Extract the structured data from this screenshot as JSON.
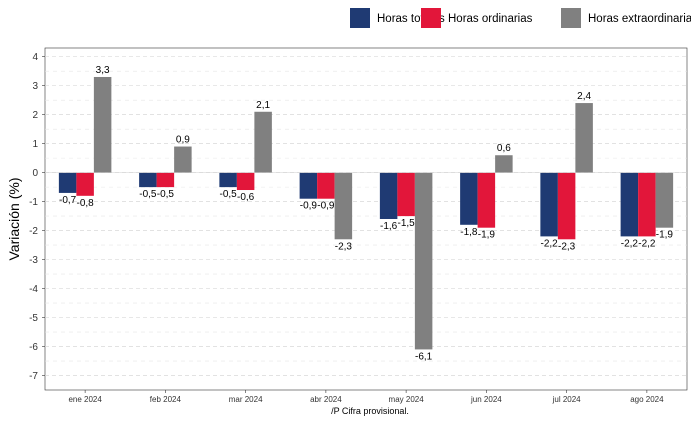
{
  "chart_data": {
    "type": "bar",
    "categories": [
      "ene 2024",
      "feb 2024",
      "mar 2024",
      "abr 2024",
      "may 2024",
      "jun 2024",
      "jul 2024",
      "ago 2024"
    ],
    "series": [
      {
        "name": "Horas totales",
        "color": "#1f3a73",
        "values": [
          -0.7,
          -0.5,
          -0.5,
          -0.9,
          -1.6,
          -1.8,
          -2.2,
          -2.2
        ],
        "labels": [
          "-0,7",
          "-0,5",
          "-0,5",
          "-0,9",
          "-1,6",
          "-1,8",
          "-2,2",
          "-2,2"
        ]
      },
      {
        "name": "Horas ordinarias",
        "color": "#e2163a",
        "values": [
          -0.8,
          -0.5,
          -0.6,
          -0.9,
          -1.5,
          -1.9,
          -2.3,
          -2.2
        ],
        "labels": [
          "-0,8",
          "-0,5",
          "-0,6",
          "-0,9",
          "-1,5",
          "-1,9",
          "-2,3",
          "-2,2"
        ]
      },
      {
        "name": "Horas extraordinarias",
        "color": "#808080",
        "values": [
          3.3,
          0.9,
          2.1,
          -2.3,
          -6.1,
          0.6,
          2.4,
          -1.9
        ],
        "labels": [
          "3,3",
          "0,9",
          "2,1",
          "-2,3",
          "-6,1",
          "0,6",
          "2,4",
          "-1,9"
        ]
      }
    ],
    "ylabel": "Variación (%)",
    "xlabel": "",
    "ylim": [
      -7.5,
      4.3
    ],
    "yticks": [
      -7,
      -6,
      -5,
      -4,
      -3,
      -2,
      -1,
      0,
      1,
      2,
      3,
      4
    ],
    "ytick_labels": [
      "-7",
      "-6",
      "-5",
      "-4",
      "-3",
      "-2",
      "-1",
      "0",
      "1",
      "2",
      "3",
      "4"
    ],
    "grid": true,
    "legend_position": "top-right",
    "footnote": "/P Cifra provisional."
  }
}
